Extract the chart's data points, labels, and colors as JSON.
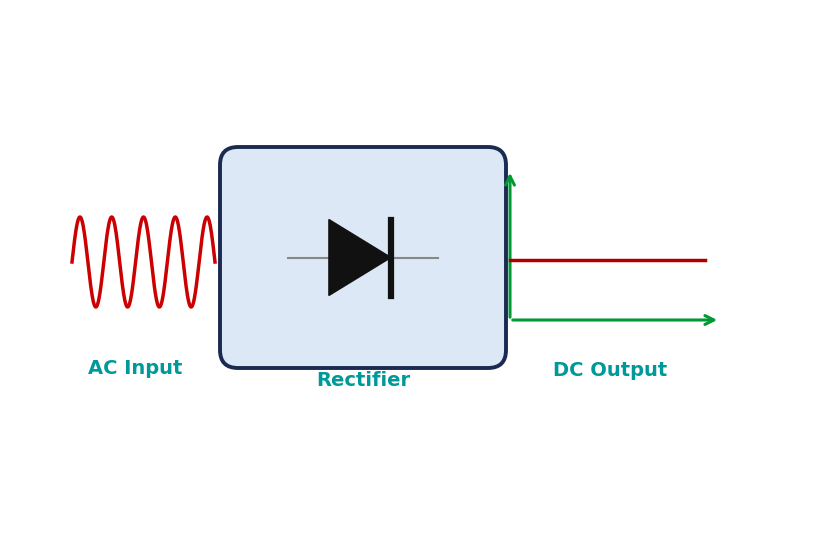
{
  "bg_color": "#ffffff",
  "ac_wave_color": "#cc0000",
  "rectifier_box_fill": "#dce8f5",
  "rectifier_box_edge": "#1a2a50",
  "diode_color": "#111111",
  "diode_line_color": "#888888",
  "dc_axes_color": "#009933",
  "dc_line_color": "#aa0000",
  "label_color": "#009999",
  "label_fontsize": 14,
  "ac_label": "AC Input",
  "rect_label": "Rectifier",
  "dc_label": "DC Output",
  "fig_width": 8.14,
  "fig_height": 5.45,
  "dpi": 100
}
